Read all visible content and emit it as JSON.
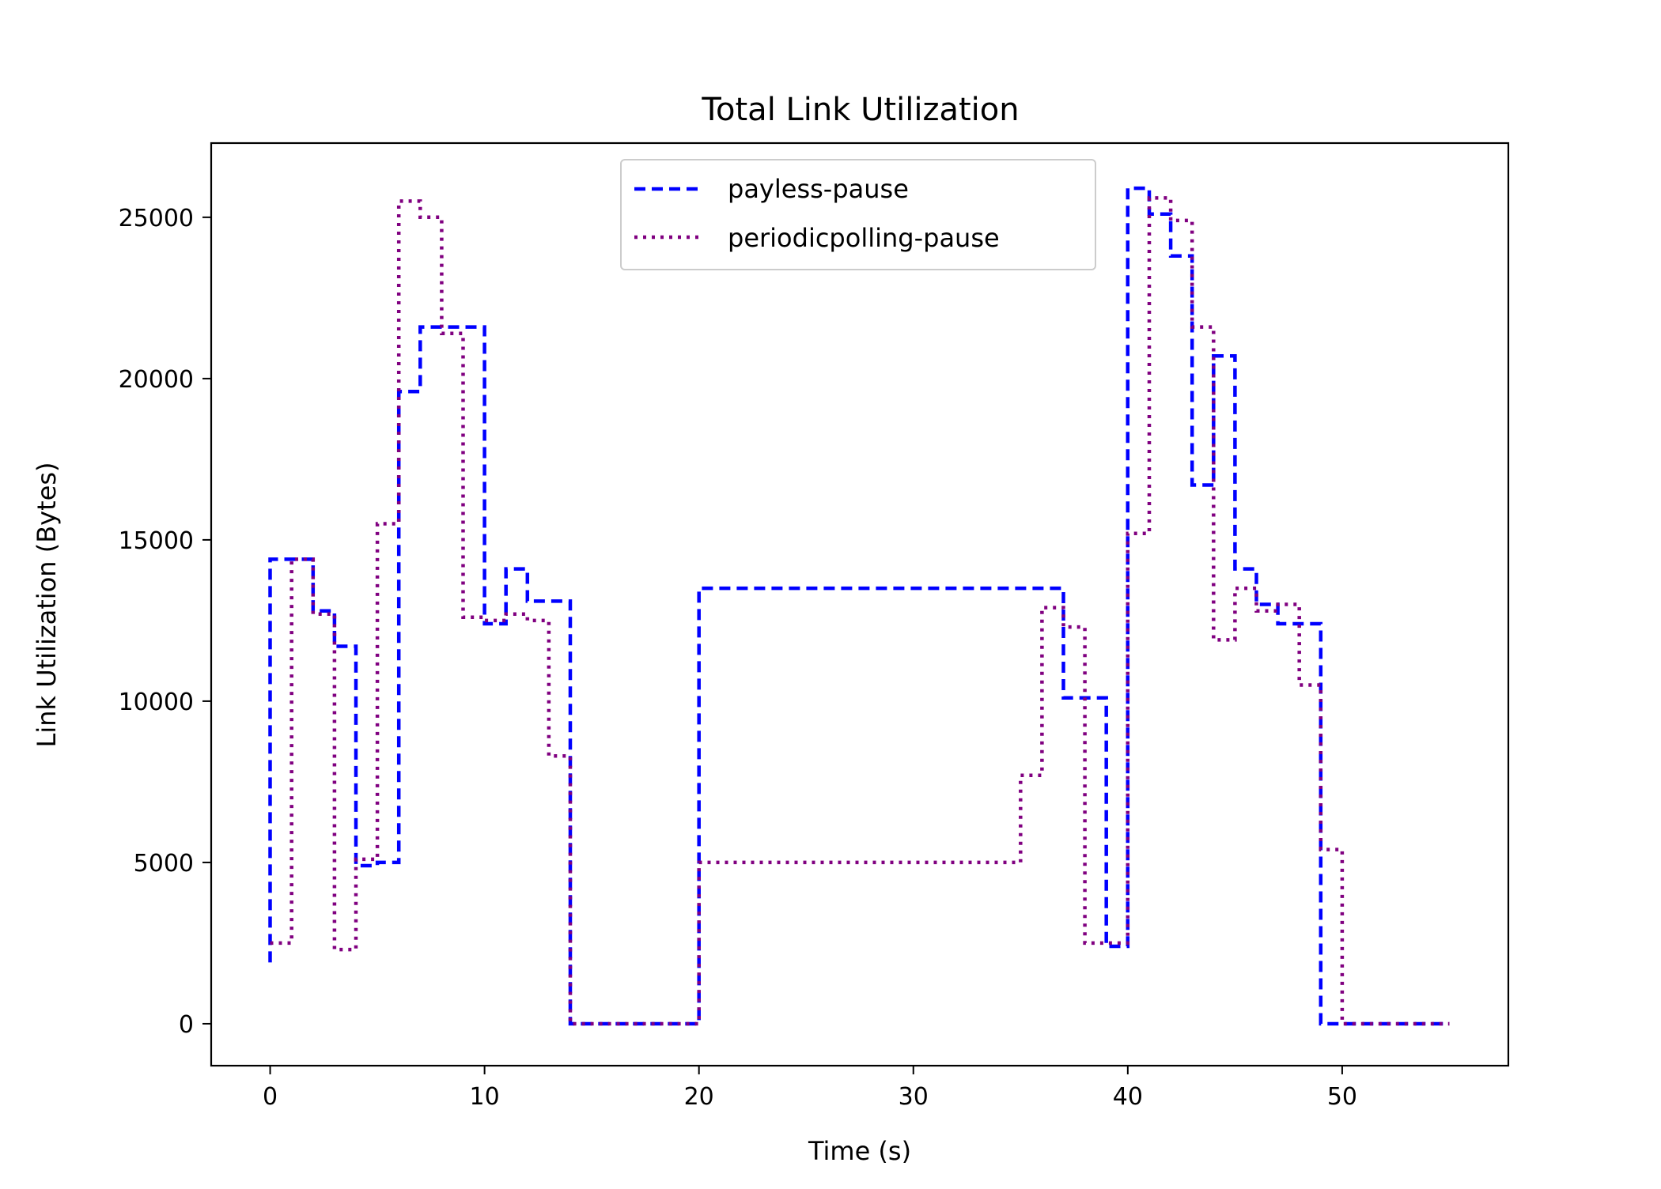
{
  "chart_data": {
    "type": "line",
    "title": "Total Link Utilization",
    "xlabel": "Time (s)",
    "ylabel": "Link Utilization (Bytes)",
    "xlim": [
      -2.75,
      57.75
    ],
    "ylim": [
      -1300,
      27300
    ],
    "xticks": [
      0,
      10,
      20,
      30,
      40,
      50
    ],
    "xtick_labels": [
      "0",
      "10",
      "20",
      "30",
      "40",
      "50"
    ],
    "yticks": [
      0,
      5000,
      10000,
      15000,
      20000,
      25000
    ],
    "ytick_labels": [
      "0",
      "5000",
      "10000",
      "15000",
      "20000",
      "25000"
    ],
    "grid": false,
    "legend_position": "upper-center",
    "step_mode": "post",
    "series": [
      {
        "name": "payless-pause",
        "color": "#0000ff",
        "style": "dashed",
        "x": [
          0,
          1,
          2,
          3,
          4,
          5,
          6,
          7,
          8,
          9,
          10,
          11,
          12,
          13,
          14,
          15,
          16,
          17,
          18,
          19,
          20,
          21,
          22,
          23,
          24,
          25,
          26,
          27,
          28,
          29,
          30,
          31,
          32,
          33,
          34,
          35,
          36,
          37,
          38,
          39,
          40,
          41,
          42,
          43,
          44,
          45,
          46,
          47,
          48,
          49,
          50,
          51,
          52,
          53,
          54,
          55
        ],
        "values": [
          14400,
          14400,
          12800,
          11700,
          4900,
          5000,
          19600,
          21600,
          21600,
          21600,
          12400,
          14100,
          13100,
          13100,
          0,
          0,
          0,
          0,
          0,
          0,
          13500,
          13500,
          13500,
          13500,
          13500,
          13500,
          13500,
          13500,
          13500,
          13500,
          13500,
          13500,
          13500,
          13500,
          13500,
          13500,
          13500,
          10100,
          10100,
          2400,
          25900,
          25100,
          23800,
          16700,
          20700,
          14100,
          13000,
          12400,
          12400,
          0,
          0,
          0,
          0,
          0,
          0,
          0
        ],
        "start_value": 1900
      },
      {
        "name": "periodicpolling-pause",
        "color": "#800080",
        "style": "dotted",
        "x": [
          0,
          1,
          2,
          3,
          4,
          5,
          6,
          7,
          8,
          9,
          10,
          11,
          12,
          13,
          14,
          15,
          16,
          17,
          18,
          19,
          20,
          21,
          22,
          23,
          24,
          25,
          26,
          27,
          28,
          29,
          30,
          31,
          32,
          33,
          34,
          35,
          36,
          37,
          38,
          39,
          40,
          41,
          42,
          43,
          44,
          45,
          46,
          47,
          48,
          49,
          50,
          51,
          52,
          53,
          54,
          55
        ],
        "values": [
          2500,
          14400,
          12700,
          2300,
          5100,
          15500,
          25500,
          25000,
          21400,
          12600,
          12500,
          12700,
          12500,
          8300,
          0,
          0,
          0,
          0,
          0,
          0,
          5000,
          5000,
          5000,
          5000,
          5000,
          5000,
          5000,
          5000,
          5000,
          5000,
          5000,
          5000,
          5000,
          5000,
          5000,
          7700,
          12900,
          12300,
          2500,
          2500,
          15200,
          25600,
          24900,
          21600,
          11900,
          13500,
          12800,
          13000,
          10500,
          5400,
          0,
          0,
          0,
          0,
          0,
          0
        ]
      }
    ]
  }
}
